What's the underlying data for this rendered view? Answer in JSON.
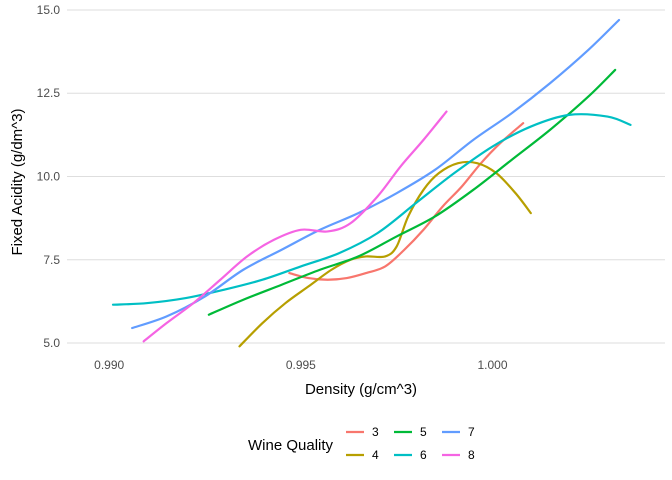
{
  "chart_data": {
    "type": "line",
    "title": "",
    "xlabel": "Density (g/cm^3)",
    "ylabel": "Fixed Acidity (g/dm^3)",
    "xlim": [
      0.9889,
      1.0045
    ],
    "ylim": [
      4.7,
      15.3
    ],
    "x_ticks": [
      0.99,
      0.995,
      1.0
    ],
    "x_tick_labels": [
      "0.990",
      "0.995",
      "1.000"
    ],
    "y_ticks": [
      5.0,
      7.5,
      10.0,
      12.5,
      15.0
    ],
    "y_tick_labels": [
      "5.0",
      "7.5",
      "10.0",
      "12.5",
      "15.0"
    ],
    "grid": true,
    "legend": {
      "title": "Wine Quality",
      "position": "bottom"
    },
    "series": [
      {
        "name": "3",
        "color": "#F8766D",
        "x": [
          0.9947,
          0.9952,
          0.9957,
          0.9962,
          0.9967,
          0.9972,
          0.9977,
          0.9982,
          0.9987,
          0.9992,
          0.9997,
          1.0002,
          1.0008
        ],
        "y": [
          7.1,
          6.95,
          6.9,
          6.95,
          7.1,
          7.3,
          7.8,
          8.4,
          9.1,
          9.7,
          10.4,
          11.0,
          11.6
        ]
      },
      {
        "name": "4",
        "color": "#B79F00",
        "x": [
          0.9934,
          0.994,
          0.9946,
          0.9952,
          0.9958,
          0.9963,
          0.9967,
          0.9972,
          0.9975,
          0.9978,
          0.9982,
          0.9986,
          0.9991,
          0.9996,
          1.0001,
          1.0006,
          1.001
        ],
        "y": [
          4.9,
          5.6,
          6.2,
          6.7,
          7.2,
          7.5,
          7.6,
          7.6,
          7.9,
          8.8,
          9.6,
          10.1,
          10.4,
          10.4,
          10.1,
          9.5,
          8.9
        ]
      },
      {
        "name": "5",
        "color": "#00BA38",
        "x": [
          0.9926,
          0.9935,
          0.9945,
          0.9955,
          0.9965,
          0.9975,
          0.9985,
          0.9995,
          1.0005,
          1.0015,
          1.0025,
          1.0032
        ],
        "y": [
          5.85,
          6.3,
          6.75,
          7.2,
          7.6,
          8.2,
          8.8,
          9.6,
          10.5,
          11.4,
          12.4,
          13.2
        ]
      },
      {
        "name": "6",
        "color": "#00BFC4",
        "x": [
          0.9901,
          0.991,
          0.992,
          0.993,
          0.994,
          0.995,
          0.996,
          0.997,
          0.998,
          0.999,
          1.0,
          1.001,
          1.002,
          1.003,
          1.0036
        ],
        "y": [
          6.15,
          6.2,
          6.35,
          6.6,
          6.9,
          7.3,
          7.7,
          8.3,
          9.2,
          10.1,
          10.9,
          11.5,
          11.85,
          11.8,
          11.55
        ]
      },
      {
        "name": "7",
        "color": "#619CFF",
        "x": [
          0.9906,
          0.9915,
          0.9925,
          0.9935,
          0.9945,
          0.9955,
          0.9965,
          0.9975,
          0.9985,
          0.9995,
          1.0005,
          1.0015,
          1.0025,
          1.0033
        ],
        "y": [
          5.45,
          5.8,
          6.4,
          7.2,
          7.8,
          8.4,
          8.9,
          9.5,
          10.2,
          11.1,
          11.9,
          12.8,
          13.8,
          14.7
        ]
      },
      {
        "name": "8",
        "color": "#F564E3",
        "x": [
          0.9909,
          0.9915,
          0.9922,
          0.9929,
          0.9936,
          0.9943,
          0.995,
          0.9957,
          0.9963,
          0.997,
          0.9976,
          0.9982,
          0.9988
        ],
        "y": [
          5.05,
          5.6,
          6.2,
          6.9,
          7.6,
          8.1,
          8.4,
          8.35,
          8.6,
          9.4,
          10.3,
          11.1,
          11.95
        ]
      }
    ]
  }
}
